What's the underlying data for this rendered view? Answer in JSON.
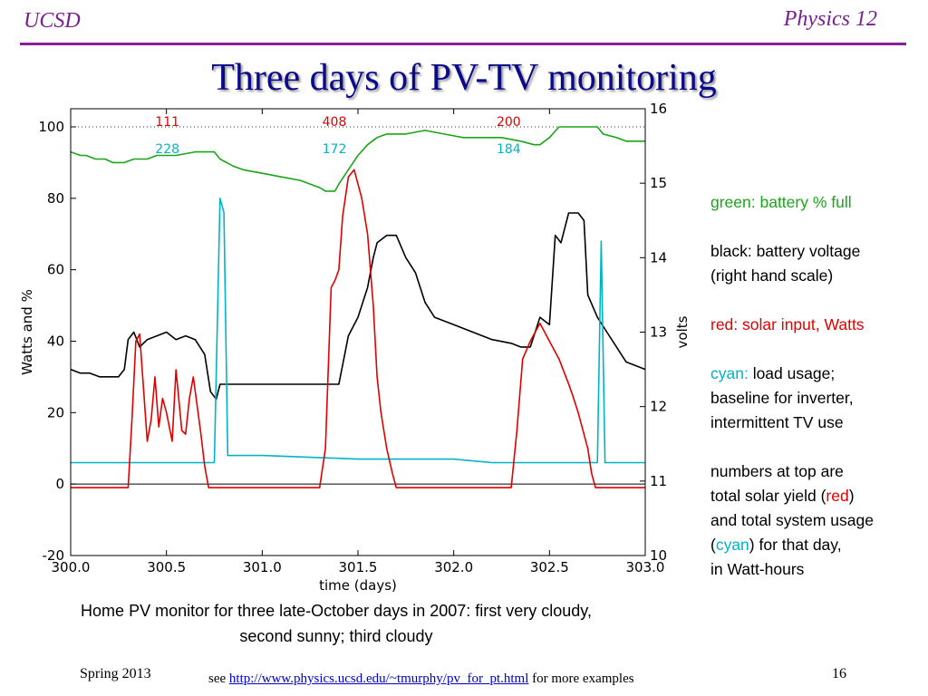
{
  "header": {
    "left": "UCSD",
    "right": "Physics 12"
  },
  "title": "Three days of PV-TV monitoring",
  "legend": {
    "green_label": "green: battery % full",
    "black_line1": "black: battery voltage",
    "black_line2": "(right hand scale)",
    "red_label": "red: solar input, Watts",
    "cyan_word": "cyan:",
    "cyan_rest": " load usage;",
    "cyan_line2": "baseline for inverter,",
    "cyan_line3": "intermittent TV use",
    "numbers_line1": "numbers at top are",
    "numbers_line2_pre": "total solar yield (",
    "numbers_line2_red": "red",
    "numbers_line2_post": ")",
    "numbers_line3": "and total system usage",
    "numbers_line4_pre": "(",
    "numbers_line4_cyan": "cyan",
    "numbers_line4_post": ") for that day,",
    "numbers_line5": "in Watt-hours"
  },
  "caption": {
    "line1": "Home PV monitor for three late-October days in 2007: first very cloudy,",
    "line2": "second sunny; third cloudy"
  },
  "footer": {
    "left": "Spring 2013",
    "see": "see ",
    "link": "http://www.physics.ucsd.edu/~tmurphy/pv_for_pt.html",
    "after": " for more examples",
    "page": "16"
  },
  "colors": {
    "green": "#1aa51a",
    "black": "#000000",
    "red": "#e00000",
    "cyan": "#00b4c8",
    "title": "#0b0b8a",
    "header": "#7a1f8f"
  },
  "chart_data": {
    "type": "line",
    "xlabel": "time (days)",
    "ylabel": "Watts and %",
    "y2label": "volts",
    "xlim": [
      300.0,
      303.0
    ],
    "ylim": [
      -20,
      105
    ],
    "y2lim": [
      10,
      16
    ],
    "x_ticks": [
      "300.0",
      "300.5",
      "301.0",
      "301.5",
      "302.0",
      "302.5",
      "303.0"
    ],
    "y_ticks": [
      "-20",
      "0",
      "20",
      "40",
      "60",
      "80",
      "100"
    ],
    "y2_ticks": [
      "10",
      "11",
      "12",
      "13",
      "14",
      "15",
      "16"
    ],
    "reference_line": {
      "y": 100,
      "style": "dotted"
    },
    "daily_yield": [
      {
        "x": 300.5,
        "solar": "111",
        "usage": "228"
      },
      {
        "x": 301.5,
        "solar": "408",
        "usage": "172"
      },
      {
        "x": 302.5,
        "solar": "200",
        "usage": "184"
      }
    ],
    "series": [
      {
        "name": "green: battery % full",
        "color": "#1aa51a",
        "axis": "left",
        "x": [
          300.0,
          300.05,
          300.08,
          300.13,
          300.18,
          300.22,
          300.28,
          300.33,
          300.4,
          300.45,
          300.55,
          300.65,
          300.75,
          300.78,
          300.85,
          300.9,
          301.0,
          301.1,
          301.2,
          301.25,
          301.3,
          301.33,
          301.38,
          301.4,
          301.45,
          301.5,
          301.55,
          301.6,
          301.65,
          301.75,
          301.85,
          301.95,
          302.05,
          302.15,
          302.25,
          302.35,
          302.42,
          302.45,
          302.5,
          302.55,
          302.65,
          302.75,
          302.78,
          302.85,
          302.9,
          303.0
        ],
        "y": [
          93,
          92,
          92,
          91,
          91,
          90,
          90,
          91,
          91,
          92,
          92,
          93,
          93,
          91,
          89,
          88,
          87,
          86,
          85,
          84,
          83,
          82,
          82,
          84,
          88,
          92,
          95,
          97,
          98,
          98,
          99,
          98,
          97,
          97,
          97,
          96,
          95,
          95,
          97,
          100,
          100,
          100,
          98,
          97,
          96,
          96
        ]
      },
      {
        "name": "black: battery voltage",
        "color": "#000000",
        "axis": "right",
        "x": [
          300.0,
          300.05,
          300.1,
          300.15,
          300.2,
          300.25,
          300.28,
          300.3,
          300.33,
          300.36,
          300.4,
          300.45,
          300.5,
          300.55,
          300.6,
          300.65,
          300.7,
          300.73,
          300.76,
          300.78,
          300.8,
          300.9,
          301.0,
          301.1,
          301.2,
          301.3,
          301.35,
          301.4,
          301.45,
          301.5,
          301.55,
          301.58,
          301.6,
          301.65,
          301.7,
          301.75,
          301.8,
          301.85,
          301.9,
          302.0,
          302.1,
          302.2,
          302.3,
          302.35,
          302.4,
          302.45,
          302.5,
          302.53,
          302.56,
          302.6,
          302.65,
          302.68,
          302.7,
          302.75,
          302.8,
          302.85,
          302.9,
          303.0
        ],
        "y": [
          12.5,
          12.45,
          12.45,
          12.4,
          12.4,
          12.4,
          12.5,
          12.9,
          13.0,
          12.8,
          12.9,
          12.95,
          13.0,
          12.9,
          12.95,
          12.9,
          12.7,
          12.2,
          12.1,
          12.3,
          12.3,
          12.3,
          12.3,
          12.3,
          12.3,
          12.3,
          12.3,
          12.3,
          12.95,
          13.2,
          13.6,
          14.0,
          14.2,
          14.3,
          14.3,
          14.0,
          13.8,
          13.4,
          13.2,
          13.1,
          13.0,
          12.9,
          12.85,
          12.8,
          12.8,
          13.2,
          13.1,
          14.3,
          14.2,
          14.6,
          14.6,
          14.5,
          13.5,
          13.2,
          13.0,
          12.8,
          12.6,
          12.5
        ]
      },
      {
        "name": "red: solar input, Watts",
        "color": "#e00000",
        "axis": "left",
        "x": [
          300.0,
          300.3,
          300.32,
          300.34,
          300.36,
          300.4,
          300.42,
          300.44,
          300.46,
          300.48,
          300.5,
          300.53,
          300.55,
          300.58,
          300.6,
          300.62,
          300.64,
          300.66,
          300.68,
          300.7,
          300.72,
          301.3,
          301.33,
          301.36,
          301.38,
          301.4,
          301.42,
          301.45,
          301.48,
          301.52,
          301.55,
          301.58,
          301.6,
          301.62,
          301.65,
          301.68,
          301.7,
          301.72,
          302.3,
          302.33,
          302.36,
          302.4,
          302.45,
          302.5,
          302.55,
          302.6,
          302.62,
          302.65,
          302.7,
          302.72,
          302.74,
          303.0
        ],
        "y": [
          -1,
          -1,
          18,
          40,
          42,
          12,
          18,
          30,
          16,
          24,
          20,
          12,
          32,
          15,
          14,
          24,
          30,
          22,
          14,
          5,
          -1,
          -1,
          10,
          55,
          57,
          60,
          75,
          86,
          88,
          80,
          70,
          50,
          30,
          20,
          10,
          3,
          -1,
          -1,
          -1,
          15,
          35,
          40,
          45,
          40,
          35,
          28,
          25,
          20,
          10,
          3,
          -1,
          -1
        ]
      },
      {
        "name": "cyan: load usage",
        "color": "#00b4c8",
        "axis": "left",
        "x": [
          300.0,
          300.1,
          300.3,
          300.5,
          300.7,
          300.75,
          300.78,
          300.8,
          300.82,
          301.0,
          301.5,
          302.0,
          302.2,
          302.5,
          302.7,
          302.75,
          302.77,
          302.79,
          302.81,
          303.0
        ],
        "y": [
          6,
          6,
          6,
          6,
          6,
          6,
          80,
          76,
          8,
          8,
          7,
          7,
          6,
          6,
          6,
          6,
          68,
          6,
          6,
          6
        ]
      }
    ]
  }
}
